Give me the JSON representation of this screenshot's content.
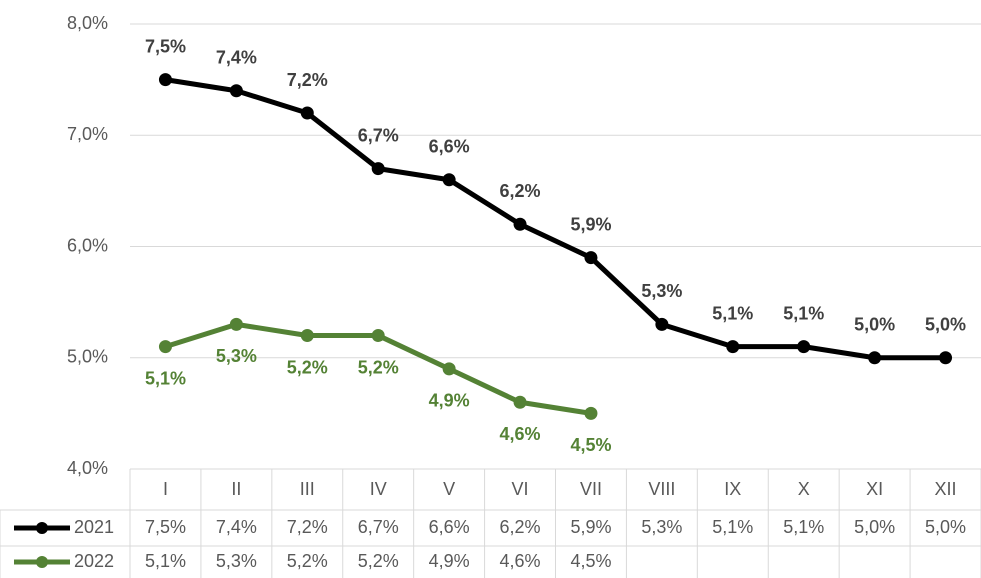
{
  "chart_data": {
    "type": "line",
    "categories": [
      "I",
      "II",
      "III",
      "IV",
      "V",
      "VI",
      "VII",
      "VIII",
      "IX",
      "X",
      "XI",
      "XII"
    ],
    "series": [
      {
        "name": "2021",
        "color": "#000000",
        "label_color": "#404040",
        "values": [
          7.5,
          7.4,
          7.2,
          6.7,
          6.6,
          6.2,
          5.9,
          5.3,
          5.1,
          5.1,
          5.0,
          5.0
        ],
        "value_labels": [
          "7,5%",
          "7,4%",
          "7,2%",
          "6,7%",
          "6,6%",
          "6,2%",
          "5,9%",
          "5,3%",
          "5,1%",
          "5,1%",
          "5,0%",
          "5,0%"
        ]
      },
      {
        "name": "2022",
        "color": "#548235",
        "label_color": "#548235",
        "values": [
          5.1,
          5.3,
          5.2,
          5.2,
          4.9,
          4.6,
          4.5,
          null,
          null,
          null,
          null,
          null
        ],
        "value_labels": [
          "5,1%",
          "5,3%",
          "5,2%",
          "5,2%",
          "4,9%",
          "4,6%",
          "4,5%",
          null,
          null,
          null,
          null,
          null
        ]
      }
    ],
    "ylim": [
      4,
      8
    ],
    "yticks": [
      {
        "value": 4,
        "label": "4,0%"
      },
      {
        "value": 5,
        "label": "5,0%"
      },
      {
        "value": 6,
        "label": "6,0%"
      },
      {
        "value": 7,
        "label": "7,0%"
      },
      {
        "value": 8,
        "label": "8,0%"
      }
    ],
    "grid": true
  }
}
